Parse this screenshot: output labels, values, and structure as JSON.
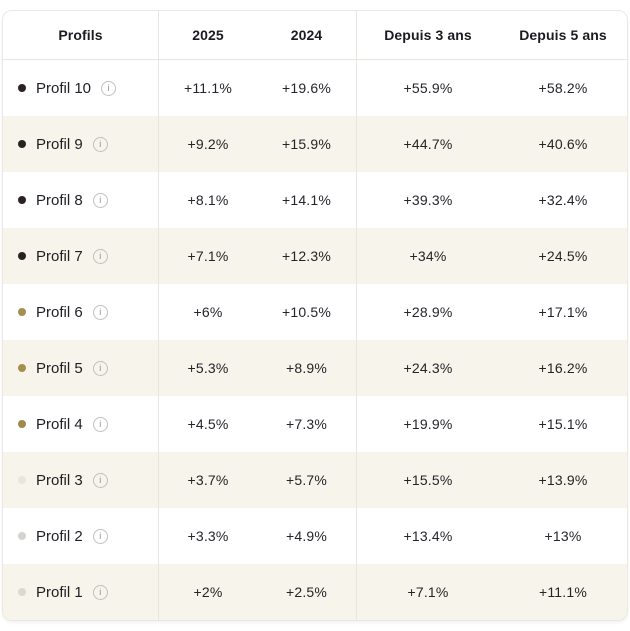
{
  "table": {
    "columns": [
      "Profils",
      "2025",
      "2024",
      "Depuis 3 ans",
      "Depuis 5 ans"
    ],
    "rows": [
      {
        "label": "Profil 10",
        "dot_color": "#2b2125",
        "values": [
          "+11.1%",
          "+19.6%",
          "+55.9%",
          "+58.2%"
        ]
      },
      {
        "label": "Profil 9",
        "dot_color": "#2b2125",
        "values": [
          "+9.2%",
          "+15.9%",
          "+44.7%",
          "+40.6%"
        ]
      },
      {
        "label": "Profil 8",
        "dot_color": "#2b2125",
        "values": [
          "+8.1%",
          "+14.1%",
          "+39.3%",
          "+32.4%"
        ]
      },
      {
        "label": "Profil 7",
        "dot_color": "#2b2125",
        "values": [
          "+7.1%",
          "+12.3%",
          "+34%",
          "+24.5%"
        ]
      },
      {
        "label": "Profil 6",
        "dot_color": "#a68e4e",
        "values": [
          "+6%",
          "+10.5%",
          "+28.9%",
          "+17.1%"
        ]
      },
      {
        "label": "Profil 5",
        "dot_color": "#a68e4e",
        "values": [
          "+5.3%",
          "+8.9%",
          "+24.3%",
          "+16.2%"
        ]
      },
      {
        "label": "Profil 4",
        "dot_color": "#a1894a",
        "values": [
          "+4.5%",
          "+7.3%",
          "+19.9%",
          "+15.1%"
        ]
      },
      {
        "label": "Profil 3",
        "dot_color": "#eae4da",
        "values": [
          "+3.7%",
          "+5.7%",
          "+15.5%",
          "+13.9%"
        ]
      },
      {
        "label": "Profil 2",
        "dot_color": "#d6d4d1",
        "values": [
          "+3.3%",
          "+4.9%",
          "+13.4%",
          "+13%"
        ]
      },
      {
        "label": "Profil 1",
        "dot_color": "#ded7cc",
        "values": [
          "+2%",
          "+2.5%",
          "+7.1%",
          "+11.1%"
        ]
      }
    ],
    "info_icon_glyph": "i"
  },
  "chart_data": {
    "type": "table",
    "title": "",
    "categories": [
      "Profil 10",
      "Profil 9",
      "Profil 8",
      "Profil 7",
      "Profil 6",
      "Profil 5",
      "Profil 4",
      "Profil 3",
      "Profil 2",
      "Profil 1"
    ],
    "series": [
      {
        "name": "2025",
        "values": [
          11.1,
          9.2,
          8.1,
          7.1,
          6.0,
          5.3,
          4.5,
          3.7,
          3.3,
          2.0
        ]
      },
      {
        "name": "2024",
        "values": [
          19.6,
          15.9,
          14.1,
          12.3,
          10.5,
          8.9,
          7.3,
          5.7,
          4.9,
          2.5
        ]
      },
      {
        "name": "Depuis 3 ans",
        "values": [
          55.9,
          44.7,
          39.3,
          34.0,
          28.9,
          24.3,
          19.9,
          15.5,
          13.4,
          7.1
        ]
      },
      {
        "name": "Depuis 5 ans",
        "values": [
          58.2,
          40.6,
          32.4,
          24.5,
          17.1,
          16.2,
          15.1,
          13.9,
          13.0,
          11.1
        ]
      }
    ]
  },
  "colors": {
    "row_alt_bg": "#f7f4ec",
    "border": "#e8e6e0",
    "header_text": "#1c1b20",
    "cell_text": "#26232b"
  }
}
